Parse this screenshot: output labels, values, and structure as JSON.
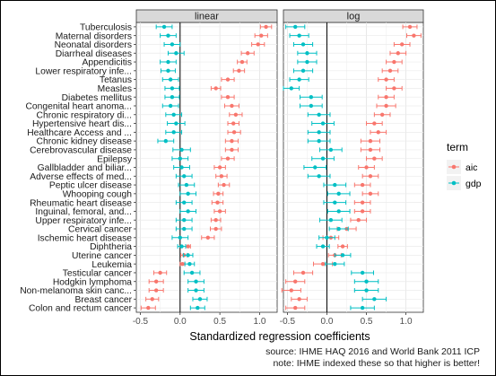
{
  "chart_data": {
    "type": "scatter",
    "facets": [
      "linear",
      "log"
    ],
    "xlabel": "Standardized regression coefficients",
    "ylabel": "",
    "xlim": [
      -0.55,
      1.22
    ],
    "xticks": [
      -0.5,
      0.0,
      0.5,
      1.0
    ],
    "xtick_labels": [
      "-0.5",
      "0.0",
      "0.5",
      "1.0"
    ],
    "grid": true,
    "reference_line": 0,
    "legend": {
      "title": "term",
      "placement": "right",
      "entries": [
        {
          "name": "aic",
          "color": "#f8766d"
        },
        {
          "name": "gdp",
          "color": "#00bfc4"
        }
      ]
    },
    "categories": [
      "Tuberculosis",
      "Maternal disorders",
      "Neonatal disorders",
      "Diarrheal diseases",
      "Appendicitis",
      "Lower respiratory infe...",
      "Tetanus",
      "Measles",
      "Diabetes mellitus",
      "Congenital heart anoma...",
      "Chronic respiratory di...",
      "Hypertensive heart dis...",
      "Healthcare Access and ...",
      "Chronic kidney disease",
      "Cerebrovascular disease",
      "Epilepsy",
      "Gallbladder and biliar...",
      "Adverse effects of med...",
      "Peptic ulcer disease",
      "Whooping cough",
      "Rheumatic heart disease",
      "Inguinal, femoral, and...",
      "Upper respiratory infe...",
      "Cervical cancer",
      "Ischemic heart disease",
      "Diphtheria",
      "Uterine cancer",
      "Leukemia",
      "Testicular cancer",
      "Hodgkin lymphoma",
      "Non-melanoma skin canc...",
      "Breast cancer",
      "Colon and rectum cancer"
    ],
    "series": [
      {
        "name": "aic",
        "facet": "linear",
        "values": [
          1.08,
          1.02,
          0.98,
          0.85,
          0.78,
          0.74,
          0.6,
          0.45,
          0.6,
          0.65,
          0.7,
          0.67,
          0.68,
          0.65,
          0.65,
          0.6,
          0.5,
          0.52,
          0.55,
          0.48,
          0.47,
          0.5,
          0.45,
          0.45,
          0.35,
          0.1,
          0.05,
          0.03,
          -0.25,
          -0.3,
          -0.3,
          -0.35,
          -0.4
        ],
        "err": [
          0.07,
          0.08,
          0.08,
          0.08,
          0.06,
          0.07,
          0.08,
          0.06,
          0.08,
          0.09,
          0.08,
          0.07,
          0.08,
          0.08,
          0.08,
          0.08,
          0.07,
          0.07,
          0.07,
          0.06,
          0.07,
          0.07,
          0.06,
          0.07,
          0.08,
          0.03,
          0.04,
          0.03,
          0.08,
          0.09,
          0.09,
          0.08,
          0.09
        ]
      },
      {
        "name": "gdp",
        "facet": "linear",
        "values": [
          -0.2,
          -0.15,
          -0.1,
          -0.05,
          -0.15,
          -0.15,
          -0.12,
          -0.1,
          -0.1,
          -0.12,
          -0.08,
          -0.05,
          -0.08,
          -0.18,
          0.02,
          0.0,
          0.02,
          0.05,
          0.08,
          0.1,
          0.05,
          0.1,
          0.05,
          0.05,
          0.0,
          0.02,
          0.1,
          0.12,
          0.15,
          0.2,
          0.2,
          0.25,
          0.22
        ],
        "err": [
          0.1,
          0.1,
          0.1,
          0.1,
          0.1,
          0.09,
          0.1,
          0.09,
          0.09,
          0.1,
          0.1,
          0.11,
          0.1,
          0.1,
          0.11,
          0.1,
          0.1,
          0.1,
          0.1,
          0.1,
          0.1,
          0.1,
          0.1,
          0.1,
          0.1,
          0.05,
          0.06,
          0.06,
          0.1,
          0.1,
          0.1,
          0.09,
          0.09
        ]
      },
      {
        "name": "aic",
        "facet": "log",
        "values": [
          1.05,
          1.1,
          0.95,
          0.9,
          0.85,
          0.8,
          0.75,
          0.85,
          0.75,
          0.75,
          0.7,
          0.6,
          0.65,
          0.55,
          0.55,
          0.6,
          0.5,
          0.55,
          0.45,
          0.55,
          0.45,
          0.45,
          0.4,
          0.25,
          0.05,
          0.2,
          0.1,
          -0.05,
          -0.3,
          -0.4,
          -0.45,
          -0.35,
          -0.4
        ],
        "err": [
          0.09,
          0.09,
          0.1,
          0.1,
          0.1,
          0.1,
          0.1,
          0.1,
          0.1,
          0.12,
          0.1,
          0.1,
          0.1,
          0.12,
          0.12,
          0.1,
          0.1,
          0.1,
          0.1,
          0.1,
          0.1,
          0.1,
          0.1,
          0.12,
          0.1,
          0.06,
          0.08,
          0.12,
          0.12,
          0.12,
          0.12,
          0.1,
          0.12
        ]
      },
      {
        "name": "gdp",
        "facet": "log",
        "values": [
          -0.4,
          -0.35,
          -0.3,
          -0.25,
          -0.25,
          -0.3,
          -0.35,
          -0.45,
          -0.2,
          -0.2,
          -0.1,
          -0.05,
          -0.1,
          -0.1,
          0.05,
          -0.05,
          -0.15,
          -0.1,
          0.1,
          0.15,
          0.1,
          0.15,
          0.05,
          0.15,
          0.0,
          -0.05,
          0.2,
          0.1,
          0.45,
          0.5,
          0.5,
          0.6,
          0.45
        ],
        "err": [
          0.12,
          0.12,
          0.12,
          0.12,
          0.12,
          0.12,
          0.12,
          0.1,
          0.14,
          0.14,
          0.14,
          0.14,
          0.14,
          0.14,
          0.14,
          0.14,
          0.14,
          0.14,
          0.14,
          0.14,
          0.14,
          0.14,
          0.14,
          0.12,
          0.1,
          0.08,
          0.1,
          0.12,
          0.14,
          0.15,
          0.15,
          0.15,
          0.15
        ]
      }
    ],
    "captions": [
      "source: IHME HAQ 2016 and World Bank 2011 ICP",
      "note: IHME indexed these so that higher is better!"
    ]
  }
}
